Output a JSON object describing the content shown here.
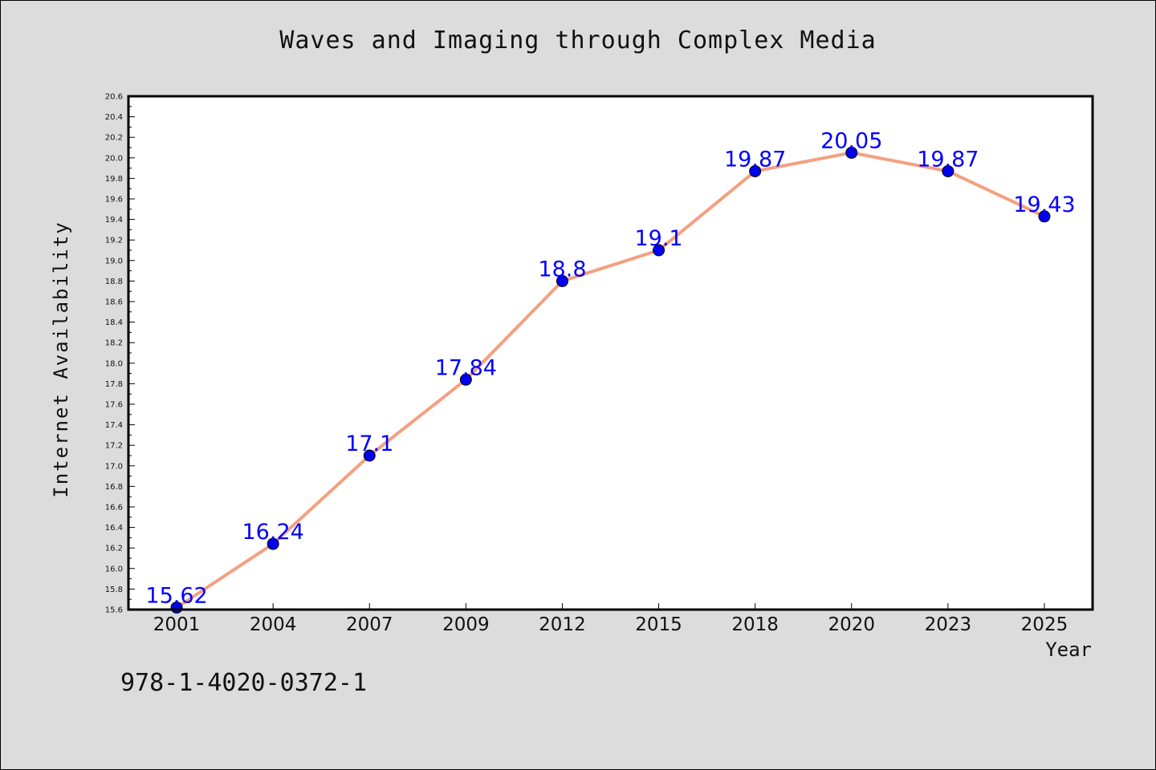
{
  "chart_data": {
    "type": "line",
    "title": "Waves and Imaging through Complex Media",
    "xlabel": "Year",
    "ylabel": "Internet Availability",
    "categories": [
      "2001",
      "2004",
      "2007",
      "2009",
      "2012",
      "2015",
      "2018",
      "2020",
      "2023",
      "2025"
    ],
    "series": [
      {
        "values": [
          15.62,
          16.24,
          17.1,
          17.84,
          18.8,
          19.1,
          19.87,
          20.05,
          19.87,
          19.43
        ],
        "data_labels": [
          "15.62",
          "16.24",
          "17.1",
          "17.84",
          "18.8",
          "19.1",
          "19.87",
          "20.05",
          "19.87",
          "19.43"
        ]
      }
    ],
    "ylim": [
      15.6,
      20.6
    ],
    "yticks": [
      "15.6",
      "15.8",
      "16.0",
      "16.2",
      "16.4",
      "16.6",
      "16.8",
      "17.0",
      "17.2",
      "17.4",
      "17.6",
      "17.8",
      "18.0",
      "18.2",
      "18.4",
      "18.6",
      "18.8",
      "19.0",
      "19.2",
      "19.4",
      "19.6",
      "19.8",
      "20.0",
      "20.2",
      "20.4",
      "20.6"
    ],
    "grid": false,
    "line_color": "#f4a080",
    "marker_color": "#0000ee",
    "label_color": "#0000ff"
  },
  "footer": {
    "isbn": "978-1-4020-0372-1"
  }
}
